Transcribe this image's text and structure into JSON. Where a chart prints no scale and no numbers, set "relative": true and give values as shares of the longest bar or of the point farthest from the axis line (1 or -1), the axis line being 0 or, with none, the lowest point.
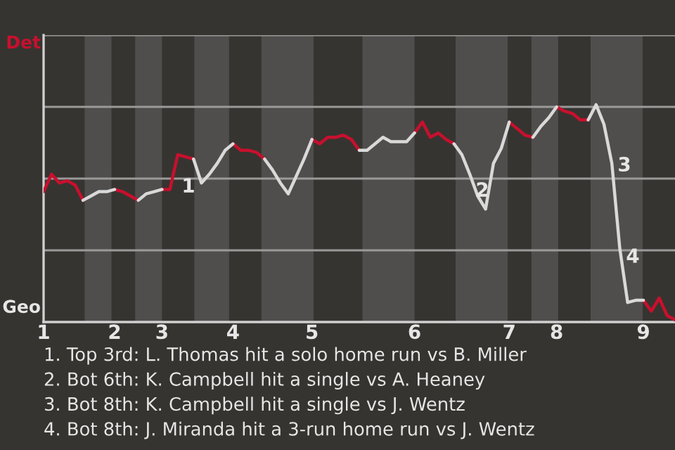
{
  "chart_data": {
    "type": "line",
    "relative": true,
    "categories": [
      "1",
      null,
      null,
      null,
      null,
      null,
      null,
      null,
      null,
      "2",
      null,
      null,
      null,
      null,
      null,
      "3",
      null,
      null,
      null,
      null,
      null,
      null,
      null,
      null,
      "4",
      null,
      null,
      null,
      null,
      null,
      null,
      null,
      null,
      null,
      "5",
      null,
      null,
      null,
      null,
      null,
      null,
      null,
      null,
      null,
      null,
      null,
      null,
      "6",
      null,
      null,
      null,
      null,
      null,
      null,
      null,
      null,
      null,
      null,
      null,
      "7",
      null,
      null,
      null,
      null,
      null,
      "8",
      null,
      null,
      null,
      null,
      null,
      null,
      null,
      null,
      null,
      null,
      "9",
      null,
      null,
      null,
      null
    ],
    "legend": false,
    "marker": "none",
    "line_style": "solid",
    "series": [
      {
        "color": "#c8102e",
        "values": [
          0.6,
          0.68,
          0.64,
          0.65,
          0.63,
          0.56,
          null,
          null,
          null,
          0.61,
          0.6,
          0.58,
          0.56,
          null,
          null,
          0.61,
          0.61,
          0.77,
          0.76,
          0.75,
          null,
          null,
          null,
          null,
          0.82,
          0.79,
          0.79,
          0.78,
          0.75,
          null,
          null,
          null,
          null,
          null,
          0.84,
          0.82,
          0.85,
          0.85,
          0.86,
          0.84,
          0.79,
          null,
          null,
          null,
          null,
          null,
          null,
          0.87,
          0.92,
          0.85,
          0.87,
          0.84,
          0.82,
          null,
          null,
          null,
          null,
          null,
          null,
          0.92,
          0.89,
          0.86,
          0.85,
          null,
          null,
          0.99,
          0.97,
          0.96,
          0.93,
          0.93,
          null,
          null,
          null,
          null,
          null,
          null,
          0.1,
          0.05,
          0.11,
          0.03,
          0.01
        ]
      },
      {
        "color": "#d9d9d9",
        "values": [
          null,
          null,
          null,
          null,
          null,
          0.56,
          0.58,
          0.6,
          0.6,
          0.61,
          null,
          null,
          0.56,
          0.59,
          0.6,
          0.61,
          null,
          null,
          null,
          0.75,
          0.64,
          0.68,
          0.73,
          0.79,
          0.82,
          null,
          null,
          null,
          0.75,
          0.7,
          0.64,
          0.59,
          0.67,
          0.75,
          0.84,
          null,
          null,
          null,
          null,
          null,
          0.79,
          0.79,
          0.82,
          0.85,
          0.83,
          0.83,
          0.83,
          0.87,
          null,
          null,
          null,
          null,
          0.82,
          0.77,
          0.68,
          0.58,
          0.52,
          0.73,
          0.8,
          0.92,
          null,
          null,
          0.85,
          0.9,
          0.94,
          0.99,
          null,
          null,
          null,
          0.93,
          1.0,
          0.91,
          0.73,
          0.34,
          0.09,
          0.1,
          0.1,
          null,
          null,
          null,
          null
        ]
      }
    ],
    "ref_lines": [
      {
        "axis": "y",
        "value": 0.33,
        "color": "#9a9a9a"
      },
      {
        "axis": "y",
        "value": 0.66,
        "color": "#9a9a9a"
      },
      {
        "axis": "y",
        "value": 0.99,
        "color": "#9a9a9a"
      },
      {
        "axis": "y",
        "value": 1.32,
        "color": "#9a9a9a"
      }
    ],
    "annotations": [
      "Det",
      "Geo",
      "1",
      "2",
      "3",
      "4",
      "1. Top 3rd: L. Thomas hit a solo home run vs B. Miller",
      "2. Bot 6th: K. Campbell hit a single vs A. Heaney",
      "3. Bot 8th: K. Campbell hit a single vs J. Wentz",
      "4. Bot 8th: J. Miranda hit a 3-run home run vs J. Wentz"
    ]
  }
}
